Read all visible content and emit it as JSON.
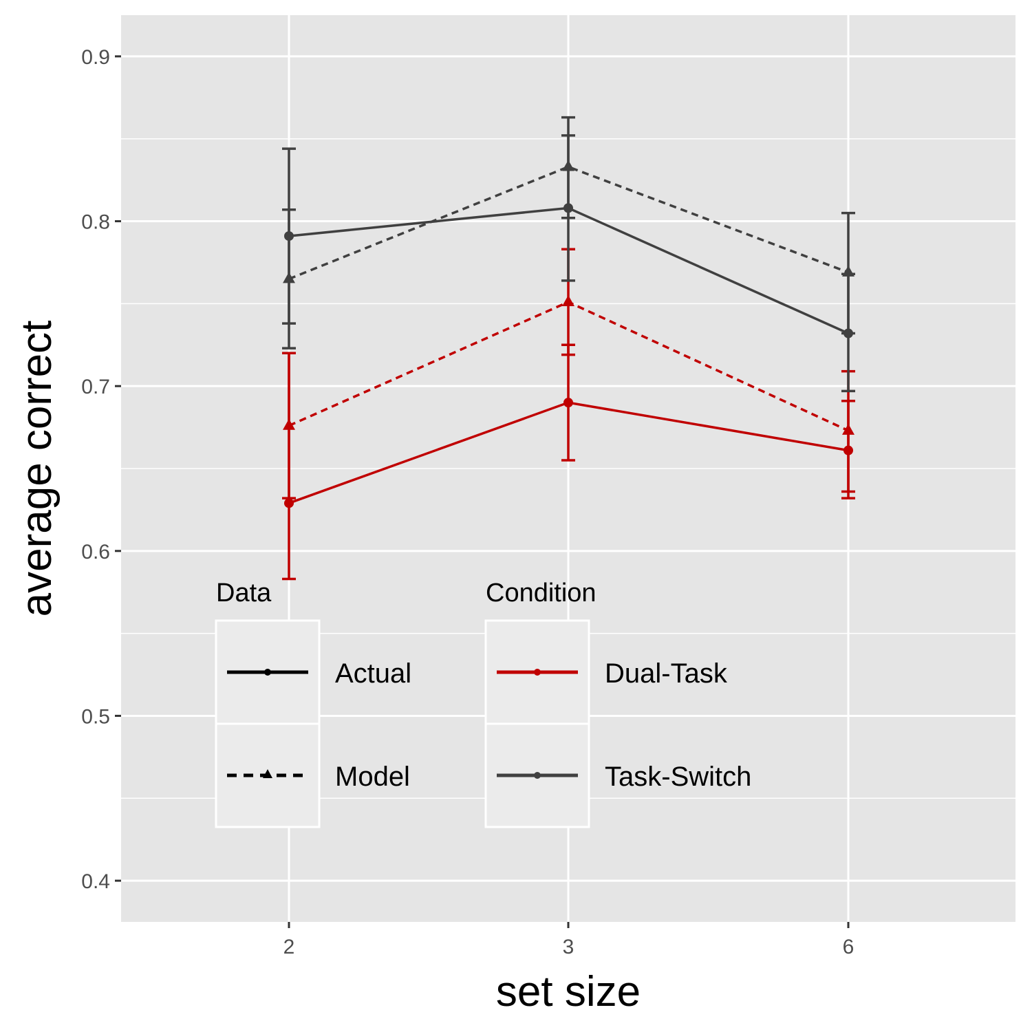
{
  "chart_data": {
    "type": "line",
    "xlabel": "set size",
    "ylabel": "average correct",
    "x_categories": [
      "2",
      "3",
      "6"
    ],
    "ylim": [
      0.375,
      0.925
    ],
    "y_ticks": [
      "0.4",
      "0.5",
      "0.6",
      "0.7",
      "0.8",
      "0.9"
    ],
    "y_tick_values": [
      0.4,
      0.5,
      0.6,
      0.7,
      0.8,
      0.9
    ],
    "grid": true,
    "colors": {
      "Dual-Task": "#c00000",
      "Task-Switch": "#404040",
      "panel": "#e5e5e5",
      "legend_key": "#ebebeb"
    },
    "legend_position": "bottom-left inside",
    "legends": {
      "data": {
        "title": "Data",
        "items": [
          "Actual",
          "Model"
        ]
      },
      "condition": {
        "title": "Condition",
        "items": [
          "Dual-Task",
          "Task-Switch"
        ]
      }
    },
    "series": [
      {
        "condition": "Dual-Task",
        "data": "Actual",
        "y": [
          0.629,
          0.69,
          0.661
        ],
        "lower": [
          0.583,
          0.655,
          0.632
        ],
        "upper": [
          0.72,
          0.725,
          0.691
        ]
      },
      {
        "condition": "Dual-Task",
        "data": "Model",
        "y": [
          0.676,
          0.751,
          0.673
        ],
        "lower": [
          0.632,
          0.719,
          0.636
        ],
        "upper": [
          0.72,
          0.783,
          0.709
        ]
      },
      {
        "condition": "Task-Switch",
        "data": "Actual",
        "y": [
          0.791,
          0.808,
          0.732
        ],
        "lower": [
          0.738,
          0.764,
          0.697
        ],
        "upper": [
          0.844,
          0.852,
          0.768
        ]
      },
      {
        "condition": "Task-Switch",
        "data": "Model",
        "y": [
          0.765,
          0.833,
          0.769
        ],
        "lower": [
          0.723,
          0.802,
          0.732
        ],
        "upper": [
          0.807,
          0.863,
          0.805
        ]
      }
    ]
  }
}
